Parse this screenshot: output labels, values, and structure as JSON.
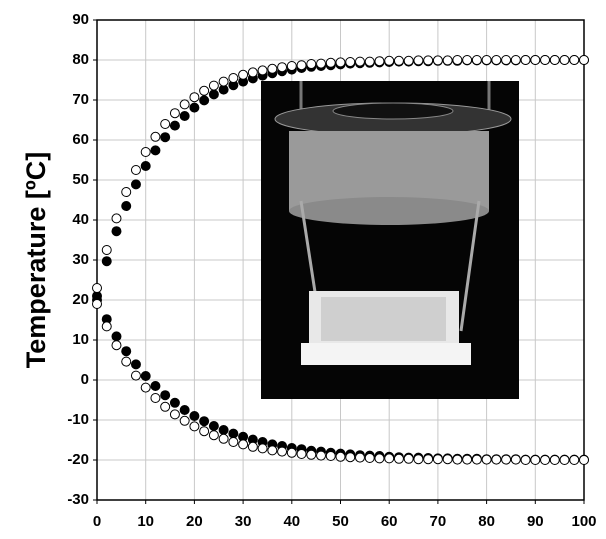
{
  "chart_data": {
    "type": "scatter",
    "ylabel": "Temperature [ºC]",
    "x": [
      0,
      2,
      4,
      6,
      8,
      10,
      12,
      14,
      16,
      18,
      20,
      22,
      24,
      26,
      28,
      30,
      32,
      34,
      36,
      38,
      40,
      42,
      44,
      46,
      48,
      50,
      52,
      54,
      56,
      58,
      60,
      62,
      64,
      66,
      68,
      70,
      72,
      74,
      76,
      78,
      80,
      82,
      84,
      86,
      88,
      90,
      92,
      94,
      96,
      98,
      100
    ],
    "series": [
      {
        "color": "#000000",
        "marker_fill": "#000000",
        "values": [
          21.0,
          29.7,
          37.2,
          43.5,
          48.9,
          53.5,
          57.4,
          60.7,
          63.6,
          66.0,
          68.1,
          69.9,
          71.4,
          72.6,
          73.7,
          74.6,
          75.4,
          76.1,
          76.7,
          77.2,
          77.6,
          78.0,
          78.3,
          78.5,
          78.7,
          78.9,
          79.1,
          79.2,
          79.3,
          79.4,
          79.5,
          79.6,
          79.6,
          79.7,
          79.7,
          79.8,
          79.8,
          79.8,
          79.9,
          79.9,
          79.9,
          79.9,
          79.9,
          79.9,
          80.0,
          80.0,
          80.0,
          80.0,
          80.0,
          80.0,
          80.0
        ]
      },
      {
        "color": "#000000",
        "marker_fill": "#ffffff",
        "values": [
          23.0,
          32.5,
          40.4,
          47.0,
          52.5,
          57.0,
          60.8,
          64.0,
          66.7,
          68.9,
          70.7,
          72.3,
          73.6,
          74.6,
          75.5,
          76.3,
          76.9,
          77.4,
          77.8,
          78.2,
          78.5,
          78.7,
          79.0,
          79.1,
          79.3,
          79.4,
          79.5,
          79.6,
          79.6,
          79.7,
          79.8,
          79.8,
          79.8,
          79.9,
          79.9,
          79.9,
          79.9,
          80.0,
          80.0,
          80.0,
          80.0,
          80.0,
          80.0,
          80.0,
          80.0,
          80.0,
          80.0,
          80.0,
          80.0,
          80.0,
          80.0
        ]
      },
      {
        "color": "#000000",
        "marker_fill": "#000000",
        "values": [
          20.0,
          15.2,
          10.9,
          7.2,
          3.9,
          1.0,
          -1.5,
          -3.8,
          -5.7,
          -7.5,
          -9.0,
          -10.3,
          -11.5,
          -12.5,
          -13.4,
          -14.2,
          -14.9,
          -15.5,
          -16.1,
          -16.5,
          -17.0,
          -17.3,
          -17.7,
          -17.9,
          -18.2,
          -18.4,
          -18.6,
          -18.8,
          -18.9,
          -19.0,
          -19.2,
          -19.3,
          -19.4,
          -19.4,
          -19.5,
          -19.6,
          -19.6,
          -19.7,
          -19.7,
          -19.7,
          -19.8,
          -19.8,
          -19.8,
          -19.8,
          -19.9,
          -19.9,
          -19.9,
          -19.9,
          -19.9,
          -19.9,
          -19.9
        ]
      },
      {
        "color": "#000000",
        "marker_fill": "#ffffff",
        "values": [
          19.0,
          13.4,
          8.7,
          4.6,
          1.1,
          -1.9,
          -4.5,
          -6.7,
          -8.6,
          -10.2,
          -11.6,
          -12.8,
          -13.8,
          -14.7,
          -15.5,
          -16.1,
          -16.7,
          -17.1,
          -17.6,
          -17.9,
          -18.2,
          -18.5,
          -18.7,
          -18.9,
          -19.0,
          -19.2,
          -19.3,
          -19.4,
          -19.5,
          -19.6,
          -19.6,
          -19.7,
          -19.7,
          -19.8,
          -19.8,
          -19.8,
          -19.8,
          -19.9,
          -19.9,
          -19.9,
          -19.9,
          -19.9,
          -19.9,
          -19.9,
          -20.0,
          -20.0,
          -20.0,
          -20.0,
          -20.0,
          -20.0,
          -20.0
        ]
      }
    ],
    "xlim": [
      0,
      100
    ],
    "xticks": [
      0,
      10,
      20,
      30,
      40,
      50,
      60,
      70,
      80,
      90,
      100
    ],
    "ylim": [
      -30,
      90
    ],
    "yticks": [
      -30,
      -20,
      -10,
      0,
      10,
      20,
      30,
      40,
      50,
      60,
      70,
      80,
      90
    ],
    "grid": true
  }
}
